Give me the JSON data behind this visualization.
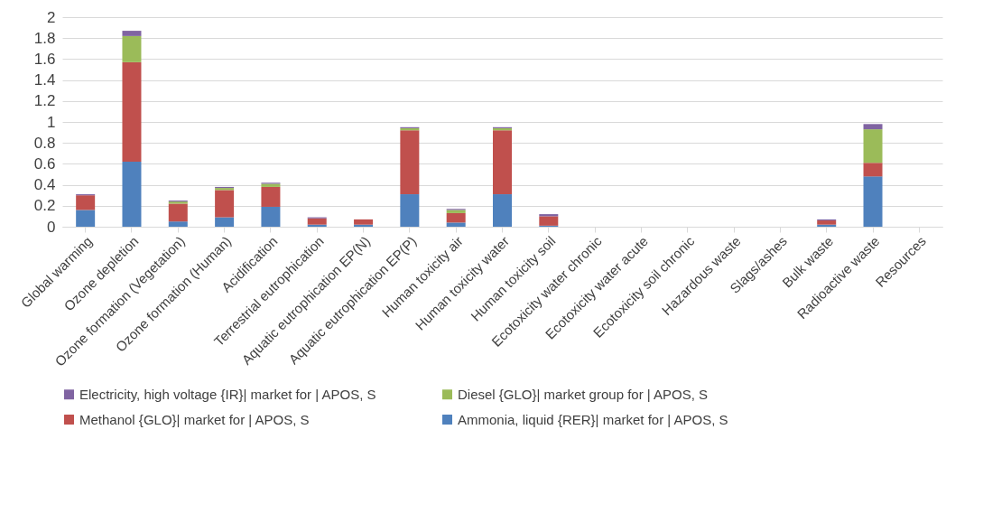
{
  "chart_data": {
    "type": "bar",
    "stacked": true,
    "categories": [
      "Global warming",
      "Ozone depletion",
      "Ozone formation (Vegetation)",
      "Ozone formation (Human)",
      "Acidification",
      "Terrestrial eutrophication",
      "Aquatic eutrophication EP(N)",
      "Aquatic eutrophication EP(P)",
      "Human toxicity air",
      "Human toxicity water",
      "Human toxicity soil",
      "Ecotoxicity water chronic",
      "Ecotoxicity water acute",
      "Ecotoxicity soil chronic",
      "Hazardous waste",
      "Slags/ashes",
      "Bulk waste",
      "Radioactive waste",
      "Resources"
    ],
    "series": [
      {
        "name": "Ammonia, liquid {RER}| market for | APOS, S",
        "color": "#4f81bd",
        "values": [
          0.16,
          0.62,
          0.05,
          0.09,
          0.19,
          0.02,
          0.02,
          0.31,
          0.04,
          0.31,
          0.01,
          0,
          0,
          0,
          0,
          0,
          0.02,
          0.48,
          0
        ]
      },
      {
        "name": "Methanol {GLO}| market for | APOS, S",
        "color": "#c0504d",
        "values": [
          0.14,
          0.95,
          0.17,
          0.26,
          0.19,
          0.06,
          0.05,
          0.61,
          0.09,
          0.61,
          0.09,
          0,
          0,
          0,
          0,
          0,
          0.04,
          0.13,
          0
        ]
      },
      {
        "name": "Diesel {GLO}| market group for | APOS, S",
        "color": "#9bbb59",
        "values": [
          0,
          0.25,
          0.02,
          0.02,
          0.03,
          0,
          0,
          0.02,
          0.03,
          0.02,
          0,
          0,
          0,
          0,
          0,
          0,
          0,
          0.32,
          0
        ]
      },
      {
        "name": "Electricity, high voltage {IR}| market for | APOS, S",
        "color": "#8064a2",
        "values": [
          0.01,
          0.05,
          0.01,
          0.01,
          0.01,
          0.01,
          0,
          0.01,
          0.01,
          0.01,
          0.02,
          0,
          0,
          0,
          0,
          0,
          0.01,
          0.05,
          0
        ]
      }
    ],
    "ylim": [
      0,
      2
    ],
    "yticks": [
      0,
      0.2,
      0.4,
      0.6,
      0.8,
      1,
      1.2,
      1.4,
      1.6,
      1.8,
      2
    ],
    "grid": "y",
    "legend": "bottom"
  }
}
